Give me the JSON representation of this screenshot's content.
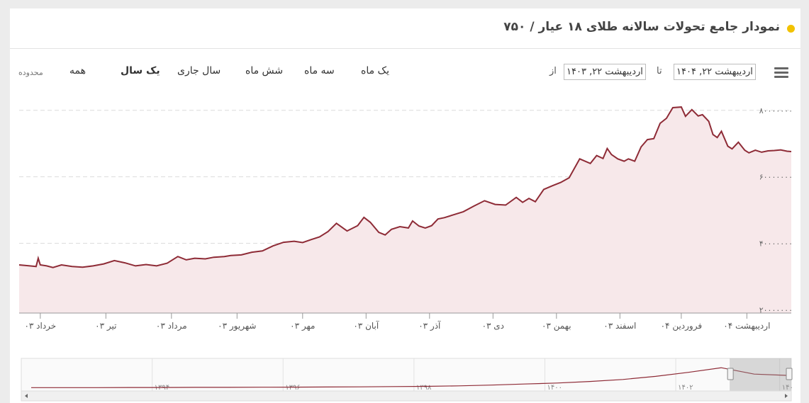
{
  "header": {
    "title": "نمودار جامع تحولات سالانه طلای ۱۸ عیار / ۷۵۰"
  },
  "toolbar": {
    "zoom_label": "محدوده",
    "range_buttons": [
      "همه",
      "یک سال",
      "سال جاری",
      "شش ماه",
      "سه ماه",
      "یک ماه"
    ],
    "active_range": "یک سال",
    "from_label": "از",
    "to_label": "تا",
    "from_date": "اردیبهشت ۲۲, ۱۴۰۳",
    "to_date": "اردیبهشت ۲۲, ۱۴۰۴",
    "menu_icon": "hamburger-menu-icon"
  },
  "colors": {
    "line": "#8e2b36",
    "area": "#f7e8ea",
    "accent_dot": "#f2c200",
    "grid": "#dcdcdc"
  },
  "chart_data": {
    "type": "area",
    "title": "",
    "xlabel": "",
    "ylabel": "",
    "ylim": [
      19000000,
      84000000
    ],
    "yticks": [
      20000000,
      40000000,
      60000000,
      80000000
    ],
    "ytick_labels": [
      "۲۰۰۰۰۰۰۰",
      "۴۰۰۰۰۰۰۰",
      "۶۰۰۰۰۰۰۰",
      "۸۰۰۰۰۰۰۰"
    ],
    "x_range": [
      0,
      365
    ],
    "xticks": [
      {
        "day": 10,
        "label": "خرداد ۰۳"
      },
      {
        "day": 41,
        "label": "تیر ۰۳"
      },
      {
        "day": 72,
        "label": "مرداد ۰۳"
      },
      {
        "day": 103,
        "label": "شهریور ۰۳"
      },
      {
        "day": 134,
        "label": "مهر ۰۳"
      },
      {
        "day": 164,
        "label": "آبان ۰۳"
      },
      {
        "day": 194,
        "label": "آذر ۰۳"
      },
      {
        "day": 224,
        "label": "دی ۰۳"
      },
      {
        "day": 254,
        "label": "بهمن ۰۳"
      },
      {
        "day": 284,
        "label": "اسفند ۰۳"
      },
      {
        "day": 313,
        "label": "فروردین ۰۴"
      },
      {
        "day": 344,
        "label": "اردیبهشت ۰۴"
      }
    ],
    "grid": true,
    "series": [
      {
        "name": "",
        "x": [
          0,
          5,
          8,
          9,
          10,
          13,
          16,
          20,
          25,
          30,
          35,
          40,
          45,
          50,
          55,
          60,
          65,
          70,
          75,
          79,
          83,
          88,
          92,
          97,
          100,
          105,
          110,
          115,
          120,
          125,
          130,
          134,
          138,
          142,
          146,
          150,
          155,
          160,
          163,
          166,
          170,
          173,
          176,
          180,
          184,
          186,
          189,
          192,
          195,
          198,
          201,
          205,
          210,
          215,
          220,
          225,
          230,
          235,
          238,
          241,
          244,
          248,
          252,
          256,
          260,
          265,
          270,
          273,
          276,
          278,
          280,
          283,
          286,
          288,
          291,
          294,
          297,
          300,
          303,
          306,
          309,
          313,
          315,
          318,
          321,
          323,
          326,
          328,
          330,
          332,
          335,
          337,
          340,
          343,
          345,
          348,
          351,
          354,
          357,
          360,
          363,
          365
        ],
        "y": [
          33500000,
          33200000,
          33000000,
          35500000,
          33500000,
          33200000,
          32700000,
          33500000,
          33000000,
          32800000,
          33200000,
          33800000,
          34800000,
          34100000,
          33200000,
          33600000,
          33200000,
          34000000,
          36000000,
          35000000,
          35500000,
          35300000,
          35800000,
          36000000,
          36300000,
          36500000,
          37300000,
          37700000,
          39200000,
          40300000,
          40600000,
          40200000,
          41100000,
          41900000,
          43500000,
          46000000,
          43700000,
          45300000,
          47800000,
          46300000,
          43300000,
          42500000,
          44200000,
          45000000,
          44600000,
          46700000,
          45200000,
          44600000,
          45300000,
          47300000,
          47700000,
          48500000,
          49500000,
          51200000,
          52800000,
          51700000,
          51500000,
          53800000,
          52300000,
          53500000,
          52500000,
          56200000,
          57300000,
          58300000,
          59700000,
          65400000,
          64000000,
          66400000,
          65500000,
          68500000,
          66700000,
          65400000,
          64700000,
          65400000,
          64700000,
          69000000,
          71200000,
          71500000,
          76100000,
          77600000,
          80800000,
          81000000,
          78200000,
          80200000,
          78300000,
          78700000,
          76700000,
          72700000,
          71800000,
          73700000,
          69200000,
          68400000,
          70400000,
          68000000,
          67200000,
          68000000,
          67400000,
          67800000,
          67900000,
          68100000,
          67700000,
          67600000
        ]
      }
    ]
  },
  "navigator": {
    "year_labels": [
      "۱۳۹۴",
      "۱۳۹۶",
      "۱۳۹۸",
      "۱۴۰۰",
      "۱۴۰۲",
      "۱۴۰"
    ],
    "series": [
      0.02,
      0.02,
      0.02,
      0.025,
      0.025,
      0.03,
      0.03,
      0.035,
      0.04,
      0.045,
      0.05,
      0.06,
      0.07,
      0.09,
      0.12,
      0.16,
      0.2,
      0.26,
      0.34,
      0.46,
      0.62,
      0.8,
      0.55,
      0.5
    ],
    "selected_fraction": [
      0.92,
      1.0
    ]
  }
}
